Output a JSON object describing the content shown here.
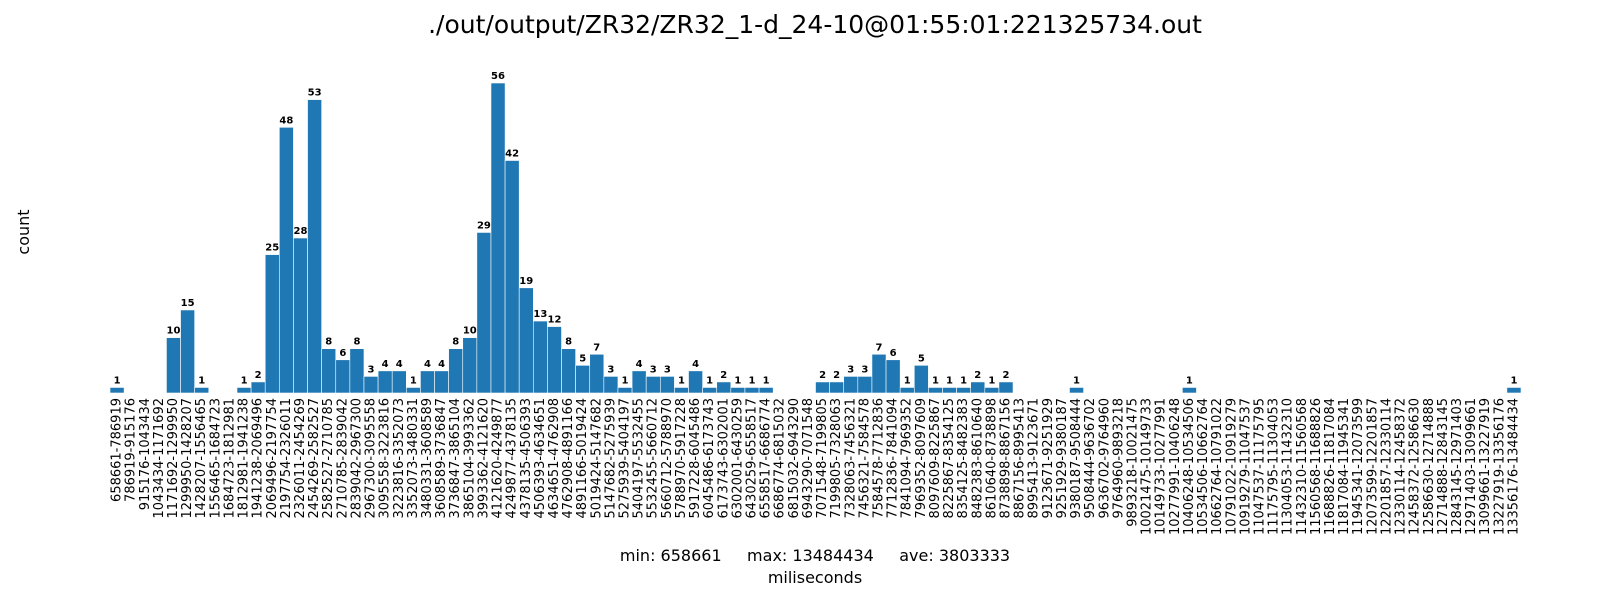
{
  "chart_data": {
    "type": "bar",
    "title": "./out/output/ZR32/ZR32_1-d_24-10@01:55:01:221325734.out",
    "ylabel": "count",
    "stats_text": "min: 658661     max: 13484434     ave: 3803333",
    "xlabel": "miliseconds",
    "ylim": [
      0,
      59
    ],
    "grid": false,
    "bar_color": "#1f77b4",
    "categories": [
      "658661-786919",
      "786919-915176",
      "915176-1043434",
      "1043434-1171692",
      "1171692-1299950",
      "1299950-1428207",
      "1428207-1556465",
      "1556465-1684723",
      "1684723-1812981",
      "1812981-1941238",
      "1941238-2069496",
      "2069496-2197754",
      "2197754-2326011",
      "2326011-2454269",
      "2454269-2582527",
      "2582527-2710785",
      "2710785-2839042",
      "2839042-2967300",
      "2967300-3095558",
      "3095558-3223816",
      "3223816-3352073",
      "3352073-3480331",
      "3480331-3608589",
      "3608589-3736847",
      "3736847-3865104",
      "3865104-3993362",
      "3993362-4121620",
      "4121620-4249877",
      "4249877-4378135",
      "4378135-4506393",
      "4506393-4634651",
      "4634651-4762908",
      "4762908-4891166",
      "4891166-5019424",
      "5019424-5147682",
      "5147682-5275939",
      "5275939-5404197",
      "5404197-5532455",
      "5532455-5660712",
      "5660712-5788970",
      "5788970-5917228",
      "5917228-6045486",
      "6045486-6173743",
      "6173743-6302001",
      "6302001-6430259",
      "6430259-6558517",
      "6558517-6686774",
      "6686774-6815032",
      "6815032-6943290",
      "6943290-7071548",
      "7071548-7199805",
      "7199805-7328063",
      "7328063-7456321",
      "7456321-7584578",
      "7584578-7712836",
      "7712836-7841094",
      "7841094-7969352",
      "7969352-8097609",
      "8097609-8225867",
      "8225867-8354125",
      "8354125-8482383",
      "8482383-8610640",
      "8610640-8738898",
      "8738898-8867156",
      "8867156-8995413",
      "8995413-9123671",
      "9123671-9251929",
      "9251929-9380187",
      "9380187-9508444",
      "9508444-9636702",
      "9636702-9764960",
      "9764960-9893218",
      "9893218-10021475",
      "10021475-10149733",
      "10149733-10277991",
      "10277991-10406248",
      "10406248-10534506",
      "10534506-10662764",
      "10662764-10791022",
      "10791022-10919279",
      "10919279-11047537",
      "11047537-11175795",
      "11175795-11304053",
      "11304053-11432310",
      "11432310-11560568",
      "11560568-11688826",
      "11688826-11817084",
      "11817084-11945341",
      "11945341-12073599",
      "12073599-12201857",
      "12201857-12330114",
      "12330114-12458372",
      "12458372-12586630",
      "12586630-12714888",
      "12714888-12843145",
      "12843145-12971403",
      "12971403-13099661",
      "13099661-13227919",
      "13227919-13356176",
      "13356176-13484434"
    ],
    "values": [
      1,
      0,
      0,
      0,
      10,
      15,
      1,
      0,
      0,
      1,
      2,
      25,
      48,
      28,
      53,
      8,
      6,
      8,
      3,
      4,
      4,
      1,
      4,
      4,
      8,
      10,
      29,
      56,
      42,
      19,
      13,
      12,
      8,
      5,
      7,
      3,
      1,
      4,
      3,
      3,
      1,
      4,
      1,
      2,
      1,
      1,
      1,
      0,
      0,
      0,
      2,
      2,
      3,
      3,
      7,
      6,
      1,
      5,
      1,
      1,
      1,
      2,
      1,
      2,
      0,
      0,
      0,
      0,
      1,
      0,
      0,
      0,
      0,
      0,
      0,
      0,
      1,
      0,
      0,
      0,
      0,
      0,
      0,
      0,
      0,
      0,
      0,
      0,
      0,
      0,
      0,
      0,
      0,
      0,
      0,
      0,
      0,
      0,
      0,
      1
    ]
  }
}
